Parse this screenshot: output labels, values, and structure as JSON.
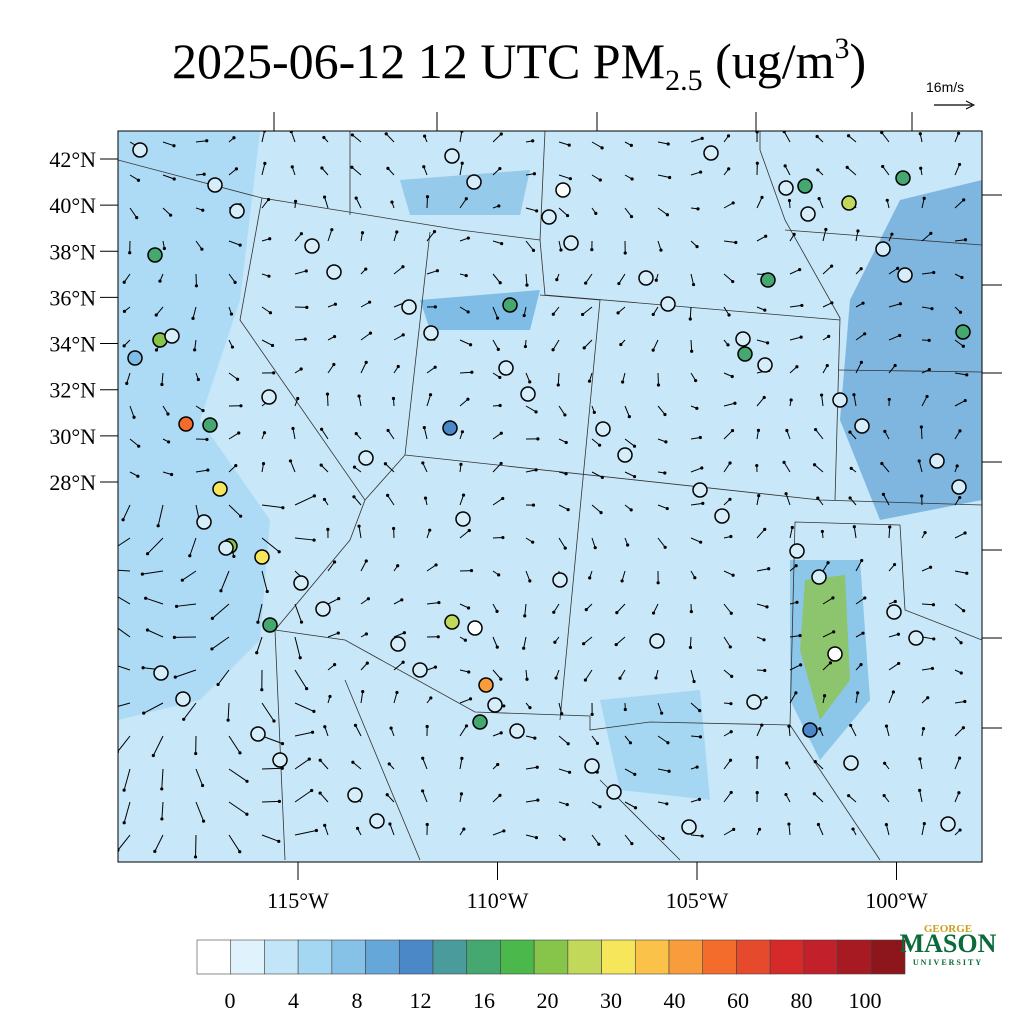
{
  "map": {
    "title": {
      "prefix": "2025-06-12 12 UTC PM",
      "subscript": "2.5",
      "middle": " (ug/m",
      "superscript": "3",
      "suffix": ")"
    },
    "vector_key": "16m/s",
    "lat_ticks": [
      {
        "value": 42,
        "label": "42°N"
      },
      {
        "value": 40,
        "label": "40°N"
      },
      {
        "value": 38,
        "label": "38°N"
      },
      {
        "value": 36,
        "label": "36°N"
      },
      {
        "value": 34,
        "label": "34°N"
      },
      {
        "value": 32,
        "label": "32°N"
      },
      {
        "value": 30,
        "label": "30°N"
      },
      {
        "value": 28,
        "label": "28°N"
      }
    ],
    "lon_ticks": [
      {
        "value": -115,
        "label": "115°W"
      },
      {
        "value": -110,
        "label": "110°W"
      },
      {
        "value": -105,
        "label": "105°W"
      },
      {
        "value": -100,
        "label": "100°W"
      }
    ],
    "colorbar": {
      "colors": [
        "#ffffff",
        "#e0f2fb",
        "#c2e6f7",
        "#a3d7f2",
        "#86c2e8",
        "#66a7da",
        "#4a88c8",
        "#4a9c9c",
        "#44a870",
        "#4bb84c",
        "#86c44a",
        "#c2d85a",
        "#f6e65c",
        "#fbc24a",
        "#f99c3c",
        "#f46c2c",
        "#e64a2c",
        "#d62a2a",
        "#c2202a",
        "#a81a22",
        "#8c161c"
      ],
      "labels": [
        0,
        4,
        8,
        12,
        16,
        20,
        30,
        40,
        60,
        80,
        100
      ]
    },
    "logo": {
      "top": "GEORGE",
      "main": "MASON",
      "bottom": "UNIVERSITY"
    }
  }
}
